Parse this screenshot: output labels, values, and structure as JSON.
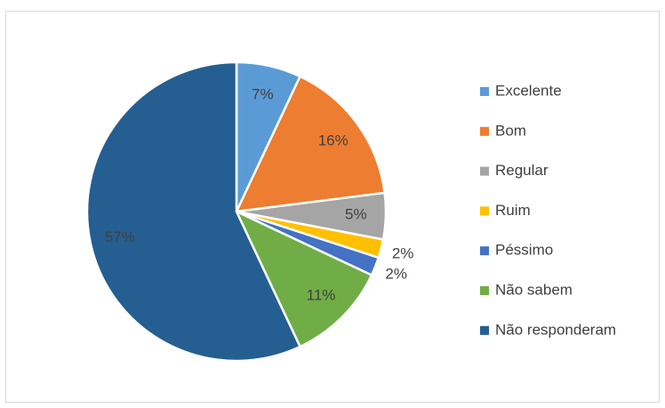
{
  "chart_data": {
    "type": "pie",
    "categories": [
      "Excelente",
      "Bom",
      "Regular",
      "Ruim",
      "Péssimo",
      "Não sabem",
      "Não responderam"
    ],
    "values": [
      7,
      16,
      5,
      2,
      2,
      11,
      57
    ],
    "value_labels": [
      "7%",
      "16%",
      "5%",
      "2%",
      "2%",
      "11%",
      "57%"
    ],
    "colors": [
      "#5b9bd5",
      "#ed7d31",
      "#a5a5a5",
      "#ffc000",
      "#4472c4",
      "#70ad47",
      "#255e91"
    ],
    "legend": "right"
  }
}
